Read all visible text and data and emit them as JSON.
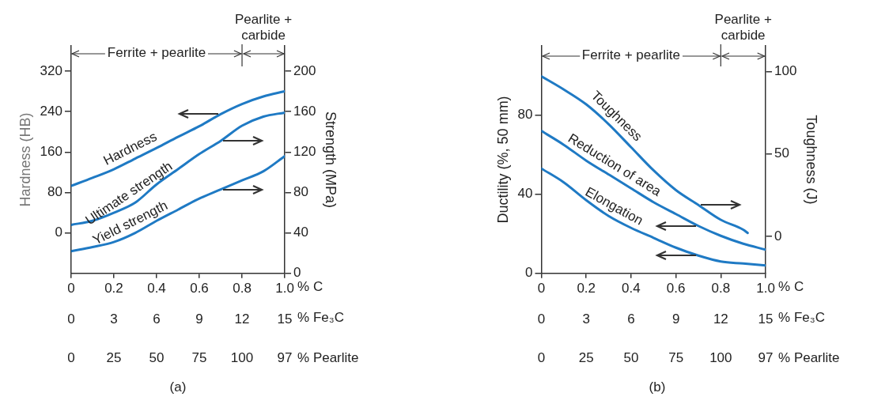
{
  "chart_data": [
    {
      "type": "line",
      "title": "(a)",
      "ylabel": "Hardness (HB)",
      "y2label": "Strength (MPa)",
      "xlabel": "% C",
      "x2label": "% Fe₃C",
      "x": [
        0,
        0.1,
        0.2,
        0.3,
        0.4,
        0.5,
        0.6,
        0.7,
        0.8,
        0.9,
        1.0
      ],
      "series": [
        {
          "name": "Hardness",
          "color": "#1f7ac4",
          "axis": "y",
          "values": [
            93,
            109,
            126,
            147,
            168,
            190,
            211,
            235,
            255,
            270,
            280
          ]
        },
        {
          "name": "Ultimate strength",
          "color": "#1f7ac4",
          "axis": "y2",
          "values": [
            48,
            52,
            60,
            70,
            88,
            103,
            118,
            131,
            146,
            155,
            159
          ]
        },
        {
          "name": "Yield strength",
          "color": "#1f7ac4",
          "axis": "y2",
          "values": [
            22,
            26,
            31,
            40,
            52,
            63,
            74,
            83,
            92,
            101,
            116
          ]
        }
      ],
      "xlim": [
        0,
        1.0
      ],
      "xticks": [
        0,
        0.2,
        0.4,
        0.6,
        0.8,
        {
          "value": 1.0,
          "label": "1.0"
        }
      ],
      "x2lim": [
        0,
        15
      ],
      "x2ticks": [
        0,
        3,
        6,
        9,
        12,
        15
      ],
      "ylim": [
        -80,
        370
      ],
      "yticks": [
        0,
        80,
        160,
        240,
        320
      ],
      "y2lim": [
        0,
        225
      ],
      "y2ticks": [
        0,
        40,
        80,
        120,
        160,
        200
      ],
      "ref_lines": [
        {
          "axis": "x",
          "value": 0.8
        }
      ],
      "annotations": [
        {
          "text": "Ferrite + pearlite",
          "x": 0.8,
          "y": 355
        },
        "Pearlite + carbide",
        "% Pearlite",
        "0",
        "25",
        "50",
        "75",
        "100",
        "97"
      ],
      "legend": false,
      "grid": false,
      "marker": "none",
      "line_style": "solid"
    },
    {
      "type": "line",
      "title": "(b)",
      "ylabel": "Ductility (%, 50 mm)",
      "y2label": "Toughness (J)",
      "xlabel": "% C",
      "x2label": "% Fe₃C",
      "x": [
        0,
        0.1,
        0.2,
        0.3,
        0.4,
        0.5,
        0.6,
        0.7,
        0.8,
        0.9,
        1.0
      ],
      "series": [
        {
          "name": "Toughness",
          "color": "#1f7ac4",
          "axis": "y2",
          "x": [
            0,
            0.1,
            0.2,
            0.3,
            0.4,
            0.5,
            0.6,
            0.7,
            0.8,
            0.9,
            0.92
          ],
          "values": [
            97,
            89,
            80,
            68,
            54,
            40,
            28,
            19,
            10,
            4,
            2
          ]
        },
        {
          "name": "Reduction of area",
          "color": "#1f7ac4",
          "axis": "y",
          "values": [
            72,
            65,
            57,
            50,
            43,
            36,
            30,
            24,
            19,
            15,
            12
          ]
        },
        {
          "name": "Elongation",
          "color": "#1f7ac4",
          "axis": "y",
          "values": [
            53,
            46,
            37,
            29,
            23,
            18,
            13,
            9,
            6,
            5,
            4
          ]
        }
      ],
      "xlim": [
        0,
        1.0
      ],
      "xticks": [
        0,
        0.2,
        0.4,
        0.6,
        0.8,
        {
          "value": 1.0,
          "label": "1.0"
        }
      ],
      "x2lim": [
        0,
        15
      ],
      "x2ticks": [
        0,
        3,
        6,
        9,
        12,
        15
      ],
      "ylim": [
        0,
        115
      ],
      "yticks": [
        0,
        40,
        80
      ],
      "y2lim": [
        -22.5,
        115.5
      ],
      "y2ticks": [
        0,
        50,
        100
      ],
      "ref_lines": [
        {
          "axis": "x",
          "value": 0.8
        }
      ],
      "annotations": [
        {
          "text": "Ferrite + pearlite",
          "x": 0.8,
          "y": 110
        },
        "Pearlite + carbide",
        "% Pearlite",
        "0",
        "25",
        "50",
        "75",
        "100",
        "97"
      ],
      "legend": false,
      "grid": false,
      "marker": "none",
      "line_style": "solid"
    }
  ]
}
